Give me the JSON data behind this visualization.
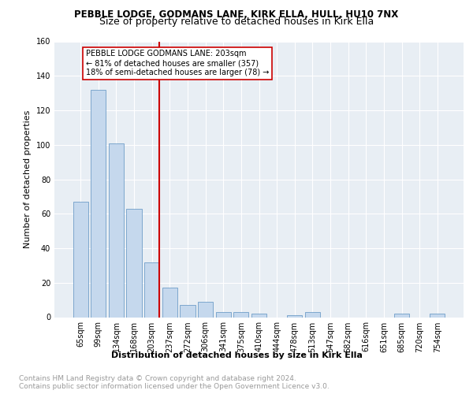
{
  "title1": "PEBBLE LODGE, GODMANS LANE, KIRK ELLA, HULL, HU10 7NX",
  "title2": "Size of property relative to detached houses in Kirk Ella",
  "xlabel": "Distribution of detached houses by size in Kirk Ella",
  "ylabel": "Number of detached properties",
  "footnote1": "Contains HM Land Registry data © Crown copyright and database right 2024.",
  "footnote2": "Contains public sector information licensed under the Open Government Licence v3.0.",
  "categories": [
    "65sqm",
    "99sqm",
    "134sqm",
    "168sqm",
    "203sqm",
    "237sqm",
    "272sqm",
    "306sqm",
    "341sqm",
    "375sqm",
    "410sqm",
    "444sqm",
    "478sqm",
    "513sqm",
    "547sqm",
    "582sqm",
    "616sqm",
    "651sqm",
    "685sqm",
    "720sqm",
    "754sqm"
  ],
  "values": [
    67,
    132,
    101,
    63,
    32,
    17,
    7,
    9,
    3,
    3,
    2,
    0,
    1,
    3,
    0,
    0,
    0,
    0,
    2,
    0,
    2
  ],
  "bar_color": "#c5d8ed",
  "bar_edge_color": "#5a8fc0",
  "marker_index": 4,
  "marker_color": "#cc0000",
  "annotation_text": "PEBBLE LODGE GODMANS LANE: 203sqm\n← 81% of detached houses are smaller (357)\n18% of semi-detached houses are larger (78) →",
  "annotation_box_color": "#ffffff",
  "annotation_box_edge": "#cc0000",
  "ylim": [
    0,
    160
  ],
  "yticks": [
    0,
    20,
    40,
    60,
    80,
    100,
    120,
    140,
    160
  ],
  "background_color": "#e8eef4",
  "grid_color": "#ffffff",
  "title1_fontsize": 8.5,
  "title2_fontsize": 9,
  "axis_label_fontsize": 8,
  "tick_fontsize": 7,
  "annotation_fontsize": 7,
  "footnote_fontsize": 6.5
}
